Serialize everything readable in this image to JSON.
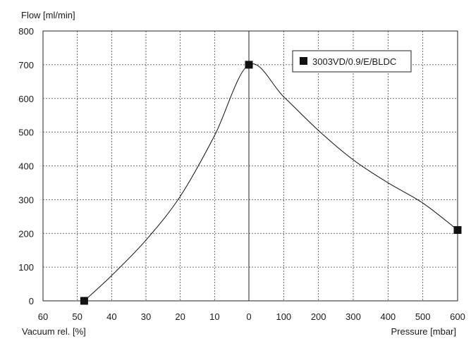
{
  "chart_data": {
    "type": "line",
    "title": "",
    "ylabel": "Flow [ml/min]",
    "xlabel_left": "Vacuum rel. [%]",
    "xlabel_right": "Pressure [mbar]",
    "ylim": [
      0,
      800
    ],
    "yticks": [
      0,
      100,
      200,
      300,
      400,
      500,
      600,
      700,
      800
    ],
    "vacuum_ticks": [
      60,
      50,
      40,
      30,
      20,
      10
    ],
    "pressure_ticks": [
      0,
      100,
      200,
      300,
      400,
      500,
      600
    ],
    "grid": true,
    "legend_position": "top-right",
    "series": [
      {
        "name": "3003VD/0.9/E/BLDC",
        "color": "#111111",
        "points": [
          {
            "axis": "vacuum",
            "x": 48,
            "y": 0,
            "marker": true
          },
          {
            "axis": "vacuum",
            "x": 40,
            "y": 75
          },
          {
            "axis": "vacuum",
            "x": 30,
            "y": 180
          },
          {
            "axis": "vacuum",
            "x": 20,
            "y": 310
          },
          {
            "axis": "vacuum",
            "x": 10,
            "y": 490
          },
          {
            "axis": "pressure",
            "x": 0,
            "y": 700,
            "marker": true
          },
          {
            "axis": "pressure",
            "x": 100,
            "y": 605
          },
          {
            "axis": "pressure",
            "x": 200,
            "y": 505
          },
          {
            "axis": "pressure",
            "x": 300,
            "y": 418
          },
          {
            "axis": "pressure",
            "x": 400,
            "y": 350
          },
          {
            "axis": "pressure",
            "x": 500,
            "y": 290
          },
          {
            "axis": "pressure",
            "x": 600,
            "y": 210,
            "marker": true
          }
        ]
      }
    ]
  }
}
